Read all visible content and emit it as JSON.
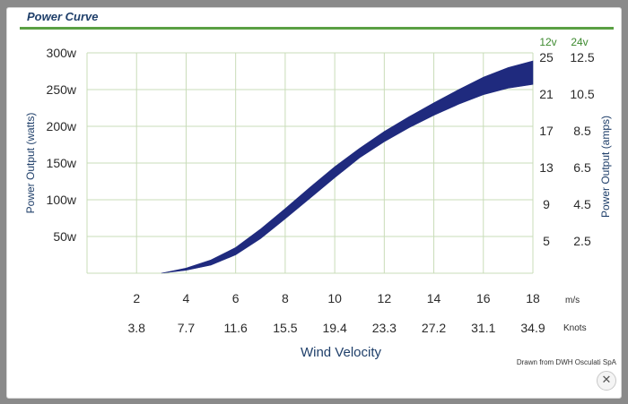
{
  "title": "Power Curve",
  "credit": "Drawn from DWH Osculati SpA",
  "close_icon": "close-icon",
  "colors": {
    "band": "#1f2a7e",
    "grid": "#c9dcb9",
    "axis_label": "#1f3f6a",
    "title_bar": "#5aa043",
    "right_header": "#3d8a2f"
  },
  "chart_data": {
    "type": "area",
    "xlabel": "Wind Velocity",
    "ylabel": "Power Output (watts)",
    "ylabel_right": "Power Output (amps)",
    "x_unit_ms": "m/s",
    "x_unit_knots": "Knots",
    "xlim": [
      0,
      18
    ],
    "ylim": [
      0,
      300
    ],
    "grid": true,
    "x_ticks_ms": [
      "2",
      "4",
      "6",
      "8",
      "10",
      "12",
      "14",
      "16",
      "18"
    ],
    "x_ticks_knots": [
      "3.8",
      "7.7",
      "11.6",
      "15.5",
      "19.4",
      "23.3",
      "27.2",
      "31.1",
      "34.9"
    ],
    "y_ticks": [
      {
        "value": 50,
        "label": "50w"
      },
      {
        "value": 100,
        "label": "100w"
      },
      {
        "value": 150,
        "label": "150w"
      },
      {
        "value": 200,
        "label": "200w"
      },
      {
        "value": 250,
        "label": "250w"
      },
      {
        "value": 300,
        "label": "300w"
      }
    ],
    "right_headers": [
      "12v",
      "24v"
    ],
    "right_ticks_12v": [
      "5",
      "9",
      "13",
      "17",
      "21",
      "25"
    ],
    "right_ticks_24v": [
      "2.5",
      "4.5",
      "6.5",
      "8.5",
      "10.5",
      "12.5"
    ],
    "x": [
      3,
      4,
      5,
      6,
      7,
      8,
      9,
      10,
      11,
      12,
      13,
      14,
      15,
      16,
      17,
      18
    ],
    "series": [
      {
        "role": "upper",
        "values": [
          0,
          7,
          18,
          35,
          60,
          88,
          117,
          145,
          170,
          193,
          213,
          232,
          250,
          267,
          280,
          289
        ]
      },
      {
        "role": "lower",
        "values": [
          0,
          4,
          11,
          25,
          47,
          74,
          102,
          130,
          157,
          179,
          198,
          215,
          230,
          243,
          252,
          257
        ]
      }
    ]
  }
}
